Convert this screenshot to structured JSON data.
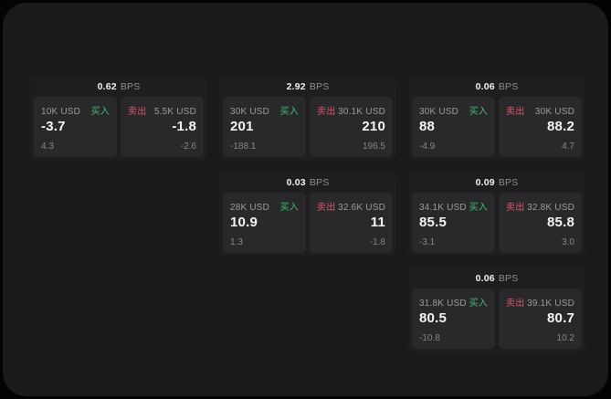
{
  "colors": {
    "background": "#030303",
    "panel": "#1a1a1c",
    "card": "#1e1e20",
    "subpanel": "#29292b",
    "buy_green": "#43bd72",
    "sell_red": "#db5667",
    "text_primary": "#f4f4f6",
    "text_muted": "#9b9ba0",
    "text_dim": "#86868c"
  },
  "labels": {
    "bps_unit": "BPS",
    "buy": "买入",
    "sell": "卖出"
  },
  "cards": [
    {
      "bps": "0.62",
      "buy": {
        "size": "10K USD",
        "price": "-3.7",
        "delta": "4.3"
      },
      "sell": {
        "size": "5.5K USD",
        "price": "-1.8",
        "delta": "-2.6"
      }
    },
    {
      "bps": "2.92",
      "buy": {
        "size": "30K USD",
        "price": "201",
        "delta": "-188.1"
      },
      "sell": {
        "size": "30.1K USD",
        "price": "210",
        "delta": "196.5"
      }
    },
    {
      "bps": "0.06",
      "buy": {
        "size": "30K USD",
        "price": "88",
        "delta": "-4.9"
      },
      "sell": {
        "size": "30K USD",
        "price": "88.2",
        "delta": "4.7"
      }
    },
    {
      "bps": "0.03",
      "buy": {
        "size": "28K USD",
        "price": "10.9",
        "delta": "1.3"
      },
      "sell": {
        "size": "32.6K USD",
        "price": "11",
        "delta": "-1.8"
      }
    },
    {
      "bps": "0.09",
      "buy": {
        "size": "34.1K USD",
        "price": "85.5",
        "delta": "-3.1"
      },
      "sell": {
        "size": "32.8K USD",
        "price": "85.8",
        "delta": "3.0"
      }
    },
    {
      "bps": "0.06",
      "buy": {
        "size": "31.8K USD",
        "price": "80.5",
        "delta": "-10.8"
      },
      "sell": {
        "size": "39.1K USD",
        "price": "80.7",
        "delta": "10.2"
      }
    }
  ]
}
